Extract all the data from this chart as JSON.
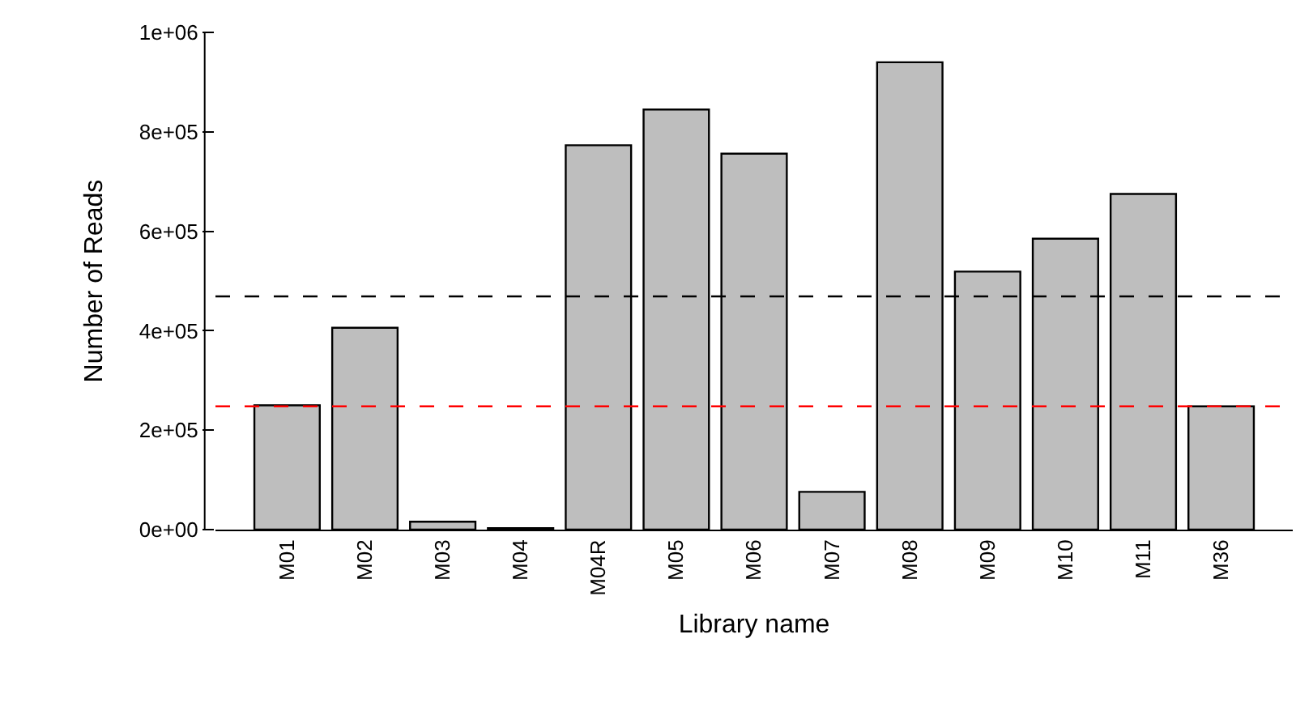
{
  "chart_data": {
    "type": "bar",
    "xlabel": "Library name",
    "ylabel": "Number of Reads",
    "categories": [
      "M01",
      "M02",
      "M03",
      "M04",
      "M04R",
      "M05",
      "M06",
      "M07",
      "M08",
      "M09",
      "M10",
      "M11",
      "M36"
    ],
    "values": [
      250000,
      406000,
      16000,
      3000,
      773000,
      845000,
      756000,
      76000,
      940000,
      519000,
      585000,
      675000,
      248000
    ],
    "color": "#bebebe",
    "ylim": [
      0,
      1000000
    ],
    "yticks": [
      {
        "value": 0,
        "label": "0e+00"
      },
      {
        "value": 200000,
        "label": "2e+05"
      },
      {
        "value": 400000,
        "label": "4e+05"
      },
      {
        "value": 600000,
        "label": "6e+05"
      },
      {
        "value": 800000,
        "label": "8e+05"
      },
      {
        "value": 1000000,
        "label": "1e+06"
      }
    ],
    "ref_lines": [
      {
        "axis": "y",
        "value": 469000,
        "color": "#000000",
        "line_style": "dashed"
      },
      {
        "axis": "y",
        "value": 248000,
        "color": "#ff0000",
        "line_style": "dashed"
      }
    ],
    "grid": false
  }
}
